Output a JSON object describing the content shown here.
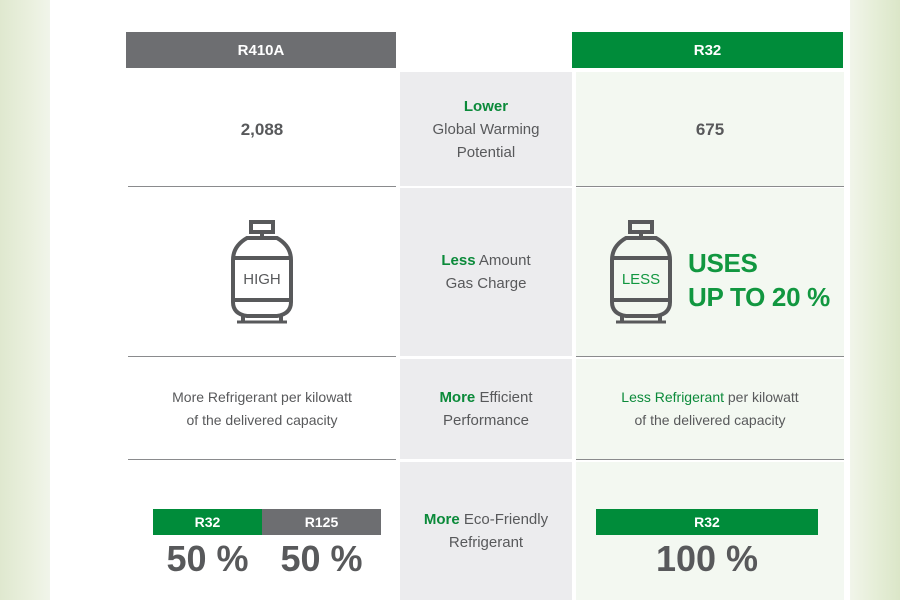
{
  "headers": {
    "left": "R410A",
    "right": "R32"
  },
  "rows": [
    {
      "left_value": "2,088",
      "middle_highlight": "Lower",
      "middle_lines": [
        "Global Warming",
        "Potential"
      ],
      "right_value": "675"
    },
    {
      "left_icon_label": "HIGH",
      "left_icon": "gas-cylinder-icon",
      "middle_highlight": "Less",
      "middle_rest": " Amount",
      "middle_line2": "Gas Charge",
      "right_icon_label": "LESS",
      "right_icon": "gas-cylinder-icon",
      "right_callout_line1": "USES",
      "right_callout_line2": "UP TO 20 %"
    },
    {
      "left_line1_a": "More Refrigerant",
      "left_line1_b": " per kilowatt",
      "left_line2": "of the delivered capacity",
      "middle_highlight": "More",
      "middle_rest": " Efficient",
      "middle_line2": "Performance",
      "right_highlight": "Less Refrigerant",
      "right_rest": " per kilowatt",
      "right_line2": "of the delivered capacity"
    },
    {
      "left_tags": [
        {
          "label": "R32",
          "value": "50 %"
        },
        {
          "label": "R125",
          "value": "50 %"
        }
      ],
      "middle_highlight": "More",
      "middle_rest": " Eco-Friendly",
      "middle_line2": "Refrigerant",
      "right_tag": {
        "label": "R32",
        "value": "100 %"
      }
    }
  ],
  "colors": {
    "brand_green": "#008c3a",
    "highlight_green": "#0b8a3a",
    "header_gray": "#6d6e71",
    "text_gray": "#58595b",
    "middle_bg": "#ececee"
  }
}
